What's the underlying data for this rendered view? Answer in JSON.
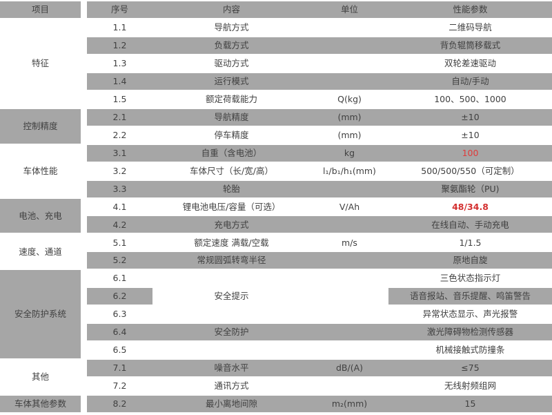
{
  "colors": {
    "shaded_row": "#a6a6a6",
    "text": "#404040",
    "red_value": "#e03a3a",
    "red_bold_value": "#d32f2f",
    "background": "#ffffff"
  },
  "header": {
    "item": "项目",
    "no": "序号",
    "content": "内容",
    "unit": "单位",
    "params": "性能参数"
  },
  "groups": [
    {
      "label": "特征",
      "span": 5,
      "shaded": false
    },
    {
      "label": "控制精度",
      "span": 2,
      "shaded": true
    },
    {
      "label": "车体性能",
      "span": 3,
      "shaded": false
    },
    {
      "label": "电池、充电",
      "span": 2,
      "shaded": true
    },
    {
      "label": "速度、通道",
      "span": 2,
      "shaded": false
    },
    {
      "label": "安全防护系统",
      "span": 5,
      "shaded": true
    },
    {
      "label": "其他",
      "span": 2,
      "shaded": false
    },
    {
      "label": "车体其他参数",
      "span": 1,
      "shaded": true
    }
  ],
  "rows": [
    {
      "no": "1.1",
      "content": "导航方式",
      "unit": "",
      "value": "二维码导航"
    },
    {
      "no": "1.2",
      "content": "负载方式",
      "unit": "",
      "value": "背负辊筒移载式"
    },
    {
      "no": "1.3",
      "content": "驱动方式",
      "unit": "",
      "value": "双轮差速驱动"
    },
    {
      "no": "1.4",
      "content": "运行模式",
      "unit": "",
      "value": "自动/手动"
    },
    {
      "no": "1.5",
      "content": "额定荷载能力",
      "unit": "Q(kg)",
      "value": "100、500、1000"
    },
    {
      "no": "2.1",
      "content": "导航精度",
      "unit": "(mm)",
      "value": "±10"
    },
    {
      "no": "2.2",
      "content": "停车精度",
      "unit": "(mm)",
      "value": "±10"
    },
    {
      "no": "3.1",
      "content": "自重（含电池）",
      "unit": "kg",
      "value": "100",
      "value_style": "red"
    },
    {
      "no": "3.2",
      "content": "车体尺寸（长/宽/高）",
      "unit": "l₁/b₁/h₁(mm)",
      "value": "500/500/550（可定制）"
    },
    {
      "no": "3.3",
      "content": "轮胎",
      "unit": "",
      "value": "聚氨酯轮（PU)"
    },
    {
      "no": "4.1",
      "content": "锂电池电压/容量（可选）",
      "unit": "V/Ah",
      "value": "48/34.8",
      "value_style": "red-bold"
    },
    {
      "no": "4.2",
      "content": "充电方式",
      "unit": "",
      "value": "在线自动、手动充电"
    },
    {
      "no": "5.1",
      "content": "额定速度 满载/空载",
      "unit": "m/s",
      "value": "1/1.5"
    },
    {
      "no": "5.2",
      "content": "常规圆弧转弯半径",
      "unit": "",
      "value": "原地自旋"
    },
    {
      "no": "6.1",
      "content": "",
      "unit": "",
      "value": "三色状态指示灯"
    },
    {
      "no": "6.2",
      "content": "安全提示",
      "unit": "",
      "value": "语音报站、音乐提醒、鸣笛警告",
      "content_white": true
    },
    {
      "no": "6.3",
      "content": "",
      "unit": "",
      "value": "异常状态显示、声光报警"
    },
    {
      "no": "6.4",
      "content": "安全防护",
      "unit": "",
      "value": "激光障碍物检测传感器"
    },
    {
      "no": "6.5",
      "content": "",
      "unit": "",
      "value": "机械接触式防撞条"
    },
    {
      "no": "7.1",
      "content": "噪音水平",
      "unit": "dB/(A)",
      "value": "≤75"
    },
    {
      "no": "7.2",
      "content": "通讯方式",
      "unit": "",
      "value": "无线射频组网"
    },
    {
      "no": "8.2",
      "content": "最小离地间隙",
      "unit": "m₂(mm)",
      "value": "15"
    }
  ]
}
